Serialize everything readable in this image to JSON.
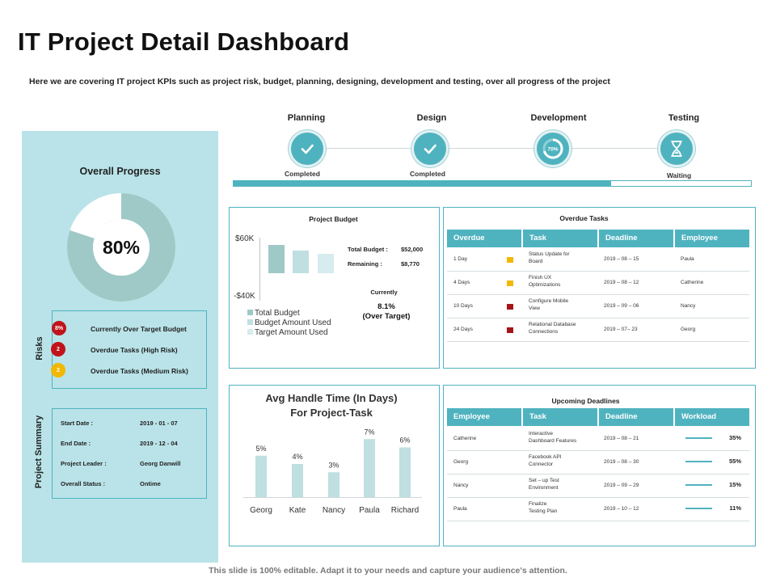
{
  "header": {
    "title": "IT Project Detail Dashboard",
    "subtitle": "Here we are covering IT project KPIs such as project risk, budget, planning, designing, development  and testing, over all progress of the project"
  },
  "phases": [
    {
      "name": "Planning",
      "status": "Completed",
      "icon": "check-icon"
    },
    {
      "name": "Design",
      "status": "Completed",
      "icon": "check-icon"
    },
    {
      "name": "Development",
      "status": "",
      "badge": "70%",
      "icon": "progress-ring-icon"
    },
    {
      "name": "Testing",
      "status": "Waiting",
      "icon": "hourglass-icon"
    }
  ],
  "timeline_progress_percent": 73,
  "overall_progress": {
    "title": "Overall Progress",
    "value_label": "80%",
    "value": 80
  },
  "risks": {
    "label": "Risks",
    "items": [
      {
        "badge": "8%",
        "text": "Currently Over Target Budget",
        "color": "#c0141a"
      },
      {
        "badge": "2",
        "text": "Overdue Tasks (High Risk)",
        "color": "#c0141a"
      },
      {
        "badge": "2",
        "text": "Overdue Tasks (Medium Risk)",
        "color": "#f2b800"
      }
    ]
  },
  "project_summary": {
    "label": "Project Summary",
    "rows": [
      {
        "label": "Start Date :",
        "value": "2019 - 01 - 07"
      },
      {
        "label": "End Date :",
        "value": "2019 - 12 - 04"
      },
      {
        "label": "Project Leader :",
        "value": "Georg Danwill"
      },
      {
        "label": "Overall Status :",
        "value": "Ontime"
      }
    ]
  },
  "budget": {
    "title": "Project Budget",
    "axis_top": "$60K",
    "axis_bottom": "-$40K",
    "total_label": "Total Budget :",
    "total_value": "$52,000",
    "remaining_label": "Remaining  :",
    "remaining_value": "$8,770",
    "currently_label": "Currently",
    "currently_value": "8.1%",
    "currently_note": "(Over Target)",
    "legend": [
      "Total Budget",
      "Budget Amount Used",
      "Target Amount Used"
    ]
  },
  "overdue": {
    "title": "Overdue Tasks",
    "headers": [
      "Overdue",
      "Task",
      "Deadline",
      "Employee"
    ],
    "rows": [
      {
        "overdue": "1 Day",
        "flag": "#f2b800",
        "task": [
          "Status Update  for",
          "Board"
        ],
        "deadline": "2019 – 08 – 15",
        "employee": "Paula"
      },
      {
        "overdue": "4 Days",
        "flag": "#f2b800",
        "task": [
          "Finish  UX",
          "Optimizations"
        ],
        "deadline": "2019 – 08 – 12",
        "employee": "Catherine"
      },
      {
        "overdue": "10 Days",
        "flag": "#a5141a",
        "task": [
          "Configure  Mobile",
          "View"
        ],
        "deadline": "2019 – 09 – 06",
        "employee": "Nancy"
      },
      {
        "overdue": "24 Days",
        "flag": "#a5141a",
        "task": [
          "Relational  Database",
          "Connections"
        ],
        "deadline": "2019 – 07–  23",
        "employee": "Georg"
      }
    ]
  },
  "handle_time": {
    "title_line1": "Avg Handle Time (In Days)",
    "title_line2": "For Project-Task"
  },
  "chart_data": {
    "type": "bar",
    "title": "Avg Handle Time (In Days) For Project-Task",
    "categories": [
      "Georg",
      "Kate",
      "Nancy",
      "Paula",
      "Richard"
    ],
    "values": [
      5,
      4,
      3,
      7,
      6
    ],
    "value_labels": [
      "5%",
      "4%",
      "3%",
      "7%",
      "6%"
    ],
    "xlabel": "",
    "ylabel": "",
    "ylim": [
      0,
      8
    ],
    "color": "#bfdfe1"
  },
  "upcoming": {
    "title": "Upcoming  Deadlines",
    "headers": [
      "Employee",
      "Task",
      "Deadline",
      "Workload"
    ],
    "rows": [
      {
        "employee": "Catherine",
        "task": [
          "Interactive",
          "Dashboard  Features"
        ],
        "deadline": "2019 – 08 – 21",
        "workload": "35%"
      },
      {
        "employee": "Georg",
        "task": [
          "Facebook  API",
          "Connector"
        ],
        "deadline": "2019 – 08 – 30",
        "workload": "55%"
      },
      {
        "employee": "Nancy",
        "task": [
          "Set – up Test",
          "Environment"
        ],
        "deadline": "2019 – 09 – 29",
        "workload": "15%"
      },
      {
        "employee": "Paula",
        "task": [
          "Finalize",
          "Testing Plan"
        ],
        "deadline": "2019 – 10 – 12",
        "workload": "11%"
      }
    ]
  },
  "footer": "This slide is 100% editable. Adapt it to your needs and capture your audience's attention.",
  "colors": {
    "accent": "#4fb3bf",
    "panel": "#b9e3e8",
    "donut": "#9ec9c6"
  }
}
